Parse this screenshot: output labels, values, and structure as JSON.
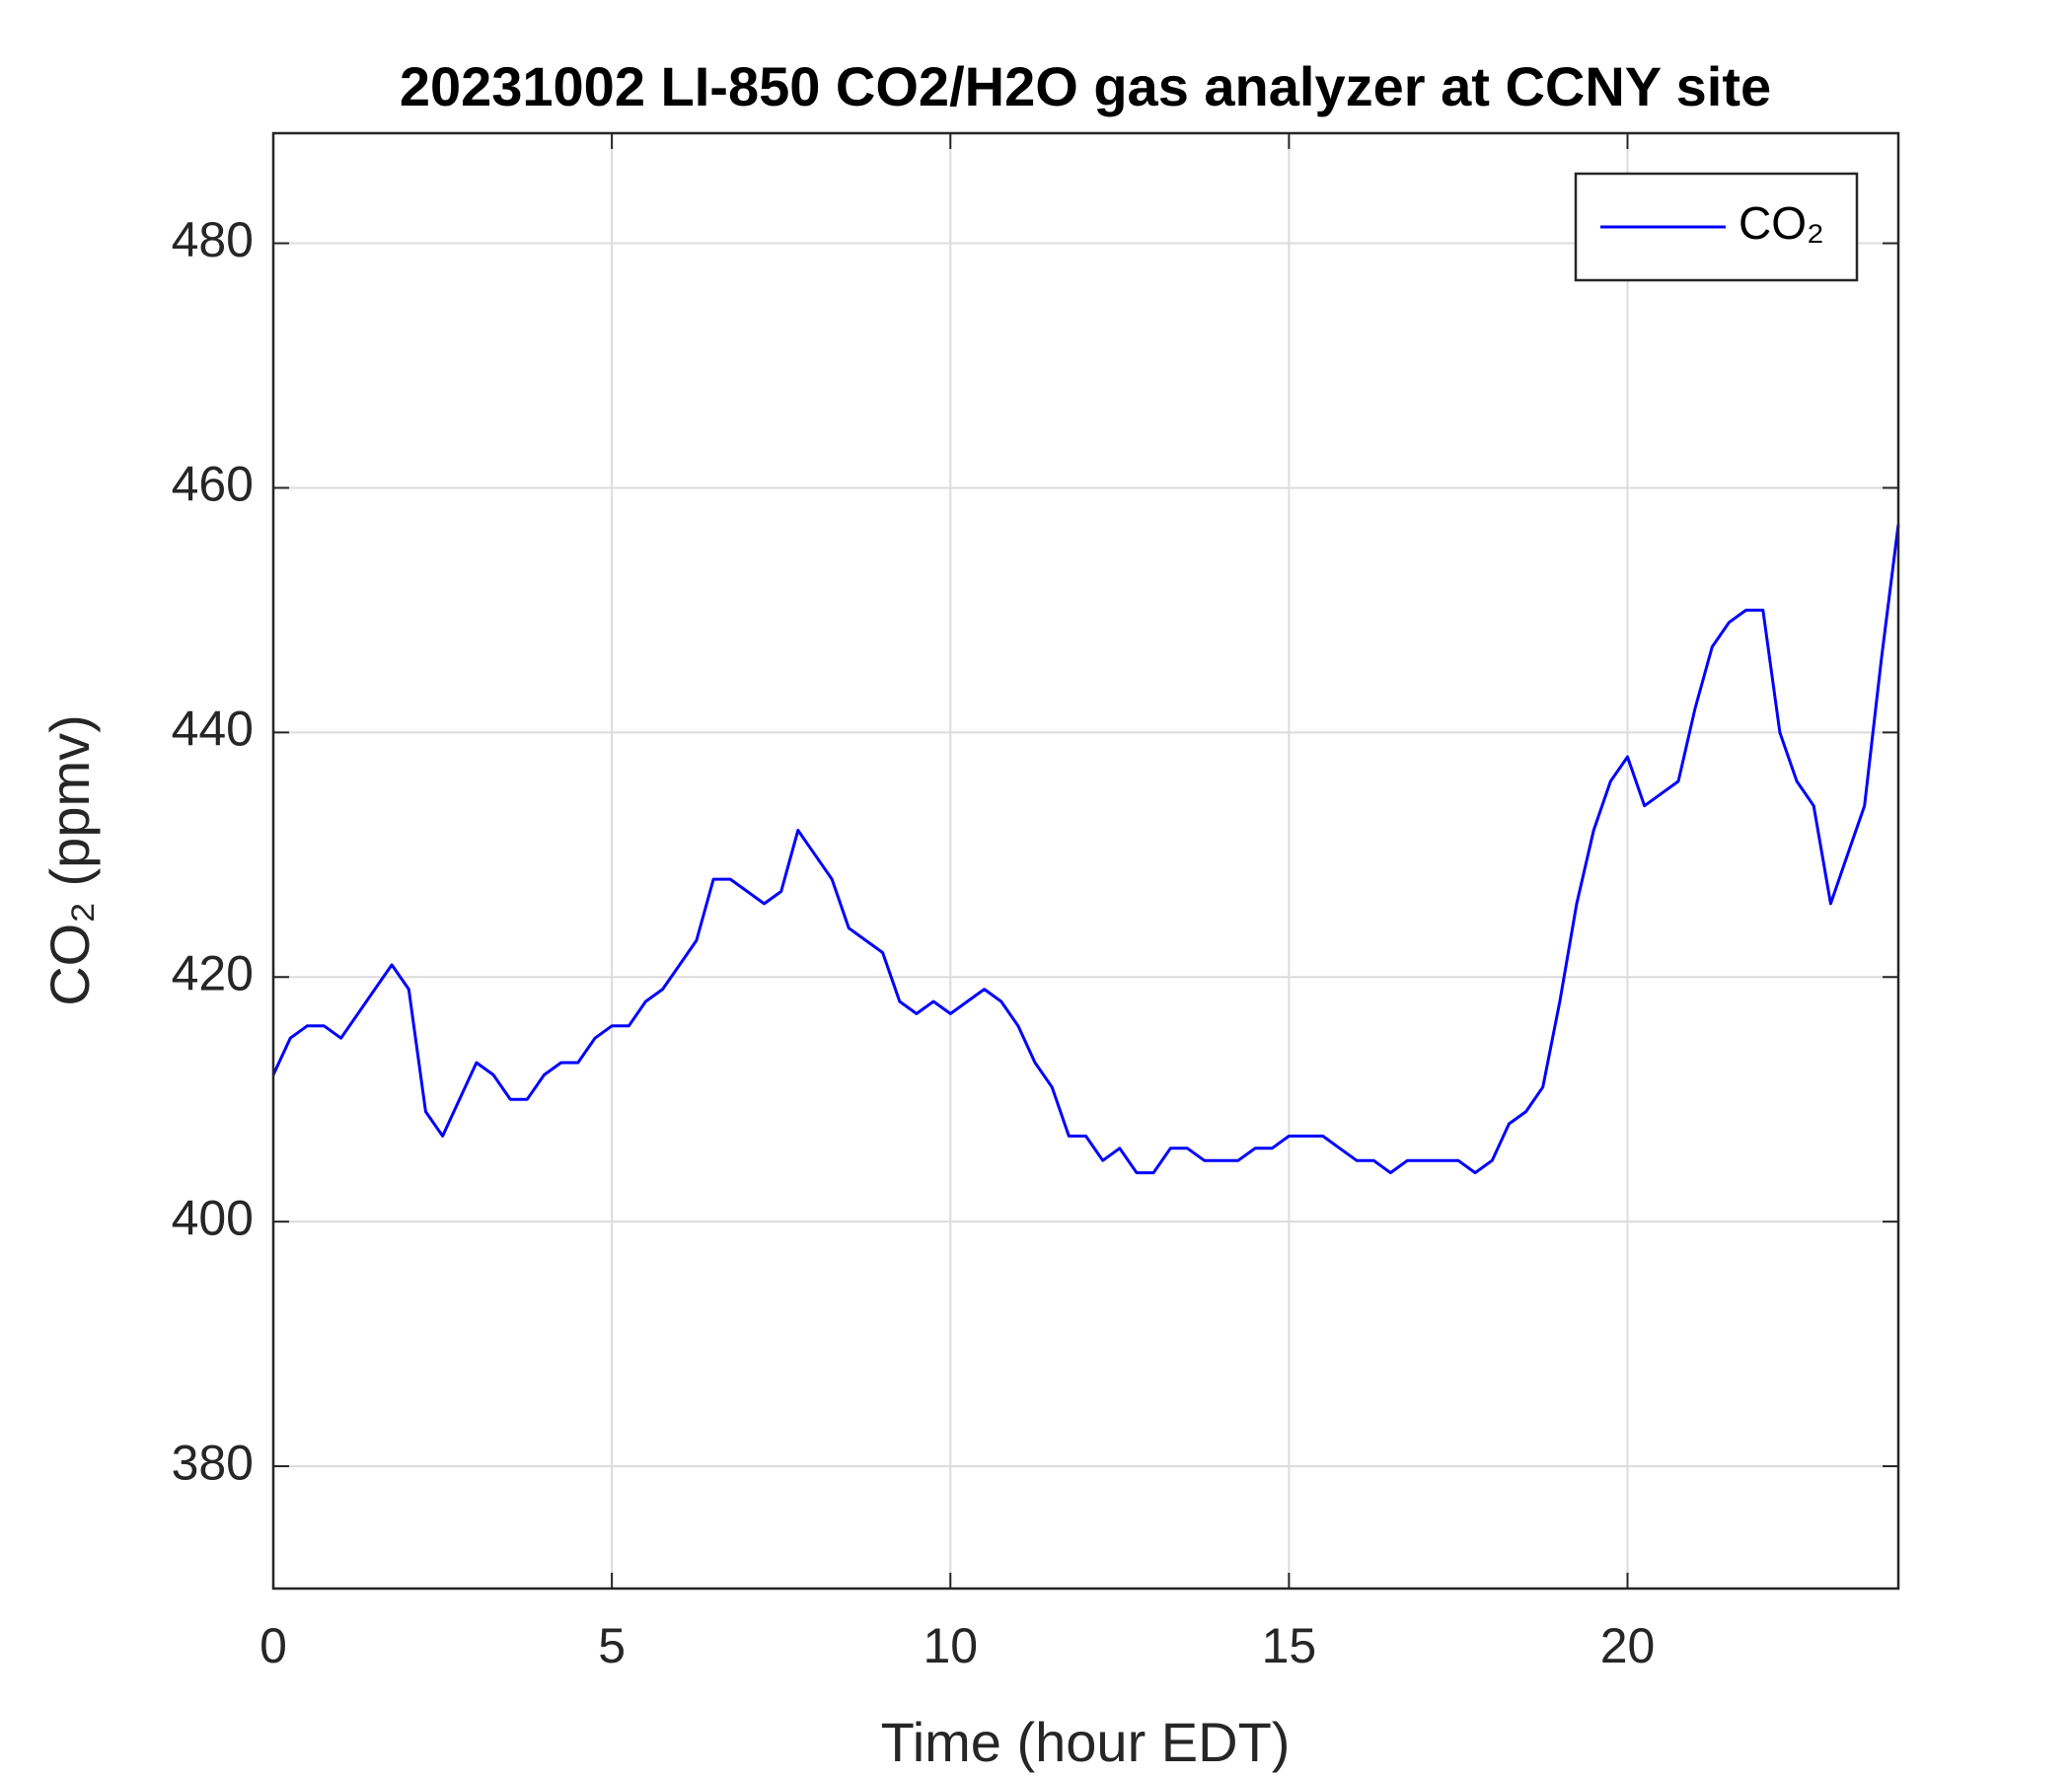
{
  "chart_data": {
    "type": "line",
    "title": "20231002 LI-850 CO2/H2O gas analyzer at CCNY site",
    "x_label": "Time (hour EDT)",
    "y_label": "CO₂ (ppmv)",
    "x": [
      0,
      0.25,
      0.5,
      0.75,
      1,
      1.25,
      1.5,
      1.75,
      2,
      2.25,
      2.5,
      2.75,
      3,
      3.25,
      3.5,
      3.75,
      4,
      4.25,
      4.5,
      4.75,
      5,
      5.25,
      5.5,
      5.75,
      6,
      6.25,
      6.5,
      6.75,
      7,
      7.25,
      7.5,
      7.75,
      8,
      8.25,
      8.5,
      8.75,
      9,
      9.25,
      9.5,
      9.75,
      10,
      10.25,
      10.5,
      10.75,
      11,
      11.25,
      11.5,
      11.75,
      12,
      12.25,
      12.5,
      12.75,
      13,
      13.25,
      13.5,
      13.75,
      14,
      14.25,
      14.5,
      14.75,
      15,
      15.25,
      15.5,
      15.75,
      16,
      16.25,
      16.5,
      16.75,
      17,
      17.25,
      17.5,
      17.75,
      18,
      18.25,
      18.5,
      18.75,
      19,
      19.25,
      19.5,
      19.75,
      20,
      20.25,
      20.5,
      20.75,
      21,
      21.25,
      21.5,
      21.75,
      22,
      22.25,
      22.5,
      22.75,
      23,
      23.25,
      23.5,
      23.75,
      24
    ],
    "series": [
      {
        "name": "CO₂",
        "color": "#0000ff",
        "values": [
          412,
          415,
          416,
          416,
          415,
          417,
          419,
          421,
          419,
          409,
          407,
          410,
          413,
          412,
          410,
          410,
          412,
          413,
          413,
          415,
          416,
          416,
          418,
          419,
          421,
          423,
          428,
          428,
          427,
          426,
          427,
          432,
          430,
          428,
          424,
          423,
          422,
          418,
          417,
          418,
          417,
          418,
          419,
          418,
          416,
          413,
          411,
          407,
          407,
          405,
          406,
          404,
          404,
          406,
          406,
          405,
          405,
          405,
          406,
          406,
          407,
          407,
          407,
          406,
          405,
          405,
          404,
          405,
          405,
          405,
          405,
          404,
          405,
          408,
          409,
          411,
          418,
          426,
          432,
          436,
          438,
          434,
          435,
          436,
          442,
          447,
          449,
          450,
          450,
          440,
          436,
          434,
          426,
          430,
          434,
          446,
          457
        ]
      }
    ],
    "xlim": [
      0,
      24
    ],
    "xticks": [
      0,
      5,
      10,
      15,
      20
    ],
    "ylim": [
      370,
      489
    ],
    "yticks": [
      380,
      400,
      420,
      440,
      460,
      480
    ],
    "grid": true,
    "legend": "top-right"
  }
}
